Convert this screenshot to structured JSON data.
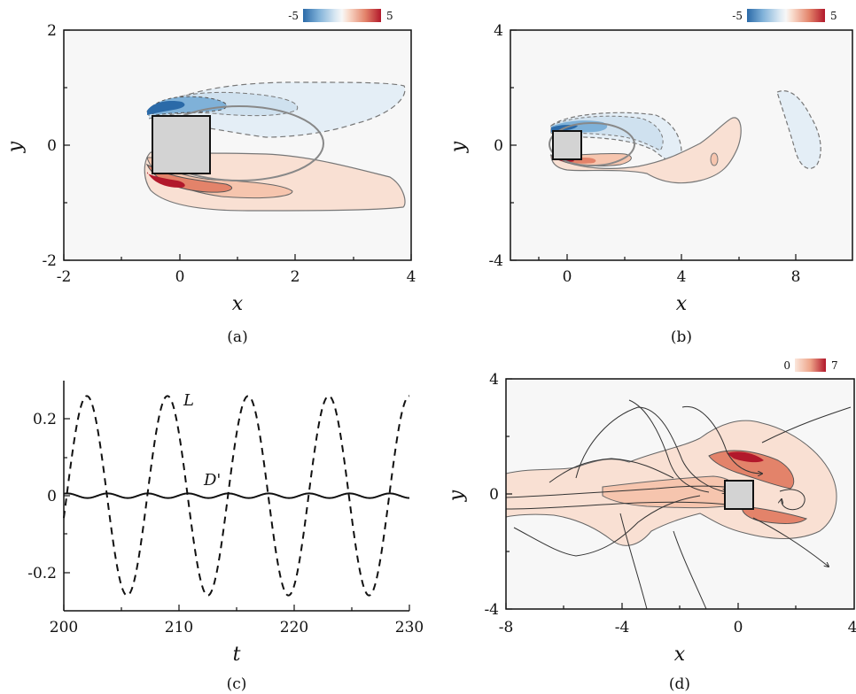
{
  "colors": {
    "blue_strong": "#2b6aa8",
    "blue_mid": "#7fb1d8",
    "blue_light": "#cfe1ef",
    "blue_pale": "#e4eef6",
    "red_strong": "#b2182b",
    "red_mid": "#e3836a",
    "red_light": "#f6c5ae",
    "red_pale": "#f9e0d3",
    "background": "#f7f7f7",
    "cylinder": "#d3d3d3"
  },
  "chart_data": [
    {
      "id": "a",
      "type": "heatmap",
      "panel_label": "(a)",
      "xlabel": "x",
      "ylabel": "y",
      "xlim": [
        -2,
        4
      ],
      "ylim": [
        -2,
        2
      ],
      "xticks": [
        "-2",
        "0",
        "2",
        "4"
      ],
      "yticks": [
        "-2",
        "0",
        "2"
      ],
      "colorbar": {
        "min": "-5",
        "max": "5"
      },
      "body": {
        "x": [
          -0.5,
          0.5
        ],
        "y": [
          -0.5,
          0.5
        ]
      }
    },
    {
      "id": "b",
      "type": "heatmap",
      "panel_label": "(b)",
      "xlabel": "x",
      "ylabel": "y",
      "xlim": [
        -2,
        10
      ],
      "ylim": [
        -4,
        4
      ],
      "xticks": [
        "0",
        "4",
        "8"
      ],
      "yticks": [
        "-4",
        "0",
        "4"
      ],
      "colorbar": {
        "min": "-5",
        "max": "5"
      },
      "body": {
        "x": [
          -0.5,
          0.5
        ],
        "y": [
          -0.5,
          0.5
        ]
      }
    },
    {
      "id": "c",
      "type": "line",
      "panel_label": "(c)",
      "xlabel": "t",
      "ylabel": "",
      "xlim": [
        200,
        230
      ],
      "ylim": [
        -0.3,
        0.3
      ],
      "xticks": [
        "200",
        "210",
        "220",
        "230"
      ],
      "yticks": [
        "-0.2",
        "0",
        "0.2"
      ],
      "series": [
        {
          "name": "L",
          "style": "dashed",
          "amplitude": 0.26,
          "period": 7.0,
          "phase_peak_t": 202.0
        },
        {
          "name": "D'",
          "style": "solid",
          "amplitude": 0.006,
          "period": 3.5,
          "phase_peak_t": 200.3
        }
      ]
    },
    {
      "id": "d",
      "type": "heatmap",
      "panel_label": "(d)",
      "xlabel": "x",
      "ylabel": "y",
      "xlim": [
        -8,
        4
      ],
      "ylim": [
        -4,
        4
      ],
      "xticks": [
        "-8",
        "-4",
        "0",
        "4"
      ],
      "yticks": [
        "-4",
        "0",
        "4"
      ],
      "colorbar": {
        "min": "0",
        "max": "7"
      },
      "body": {
        "x": [
          -0.5,
          0.5
        ],
        "y": [
          -0.5,
          0.5
        ]
      }
    }
  ]
}
